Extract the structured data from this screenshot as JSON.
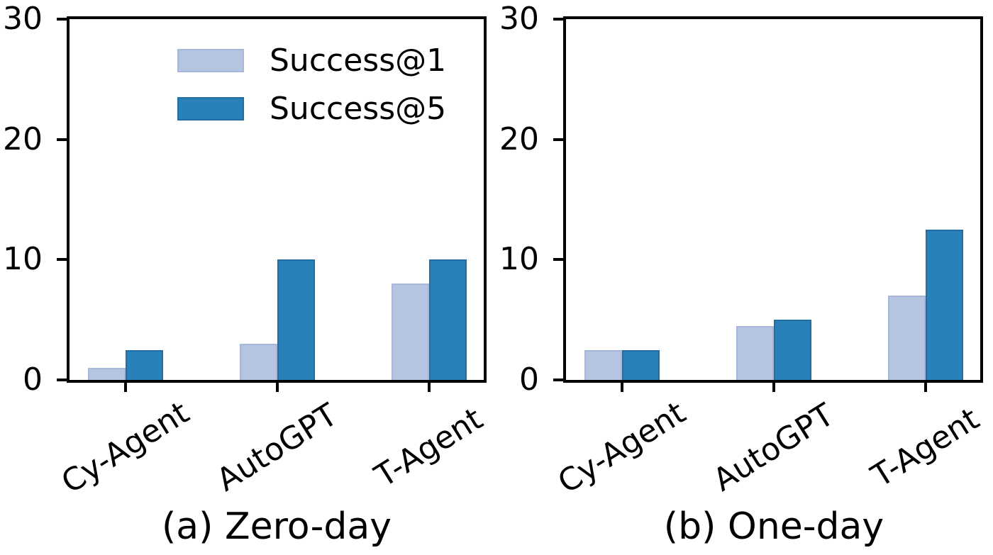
{
  "figure": {
    "background": "#ffffff",
    "axis_color": "#000000"
  },
  "chart_data": [
    {
      "type": "bar",
      "title": "(a) Zero-day",
      "categories": [
        "Cy-Agent",
        "AutoGPT",
        "T-Agent"
      ],
      "series": [
        {
          "name": "Success@1",
          "values": [
            1,
            3,
            8
          ],
          "color": "#b4c4e1",
          "edge_color": "#a6b7d9"
        },
        {
          "name": "Success@5",
          "values": [
            2.5,
            10,
            10
          ],
          "color": "#2a80b8",
          "edge_color": "#1f6fa6"
        }
      ],
      "ylim": [
        0,
        30
      ],
      "yticks": [
        0,
        10,
        20,
        30
      ],
      "grid": false,
      "legend": true,
      "legend_position": "upper-center-inside"
    },
    {
      "type": "bar",
      "title": "(b) One-day",
      "categories": [
        "Cy-Agent",
        "AutoGPT",
        "T-Agent"
      ],
      "series": [
        {
          "name": "Success@1",
          "values": [
            2.5,
            4.5,
            7
          ],
          "color": "#b4c4e1",
          "edge_color": "#a6b7d9"
        },
        {
          "name": "Success@5",
          "values": [
            2.5,
            5,
            12.5
          ],
          "color": "#2a80b8",
          "edge_color": "#1f6fa6"
        }
      ],
      "ylim": [
        0,
        30
      ],
      "yticks": [
        0,
        10,
        20,
        30
      ],
      "grid": false,
      "legend": false
    }
  ]
}
